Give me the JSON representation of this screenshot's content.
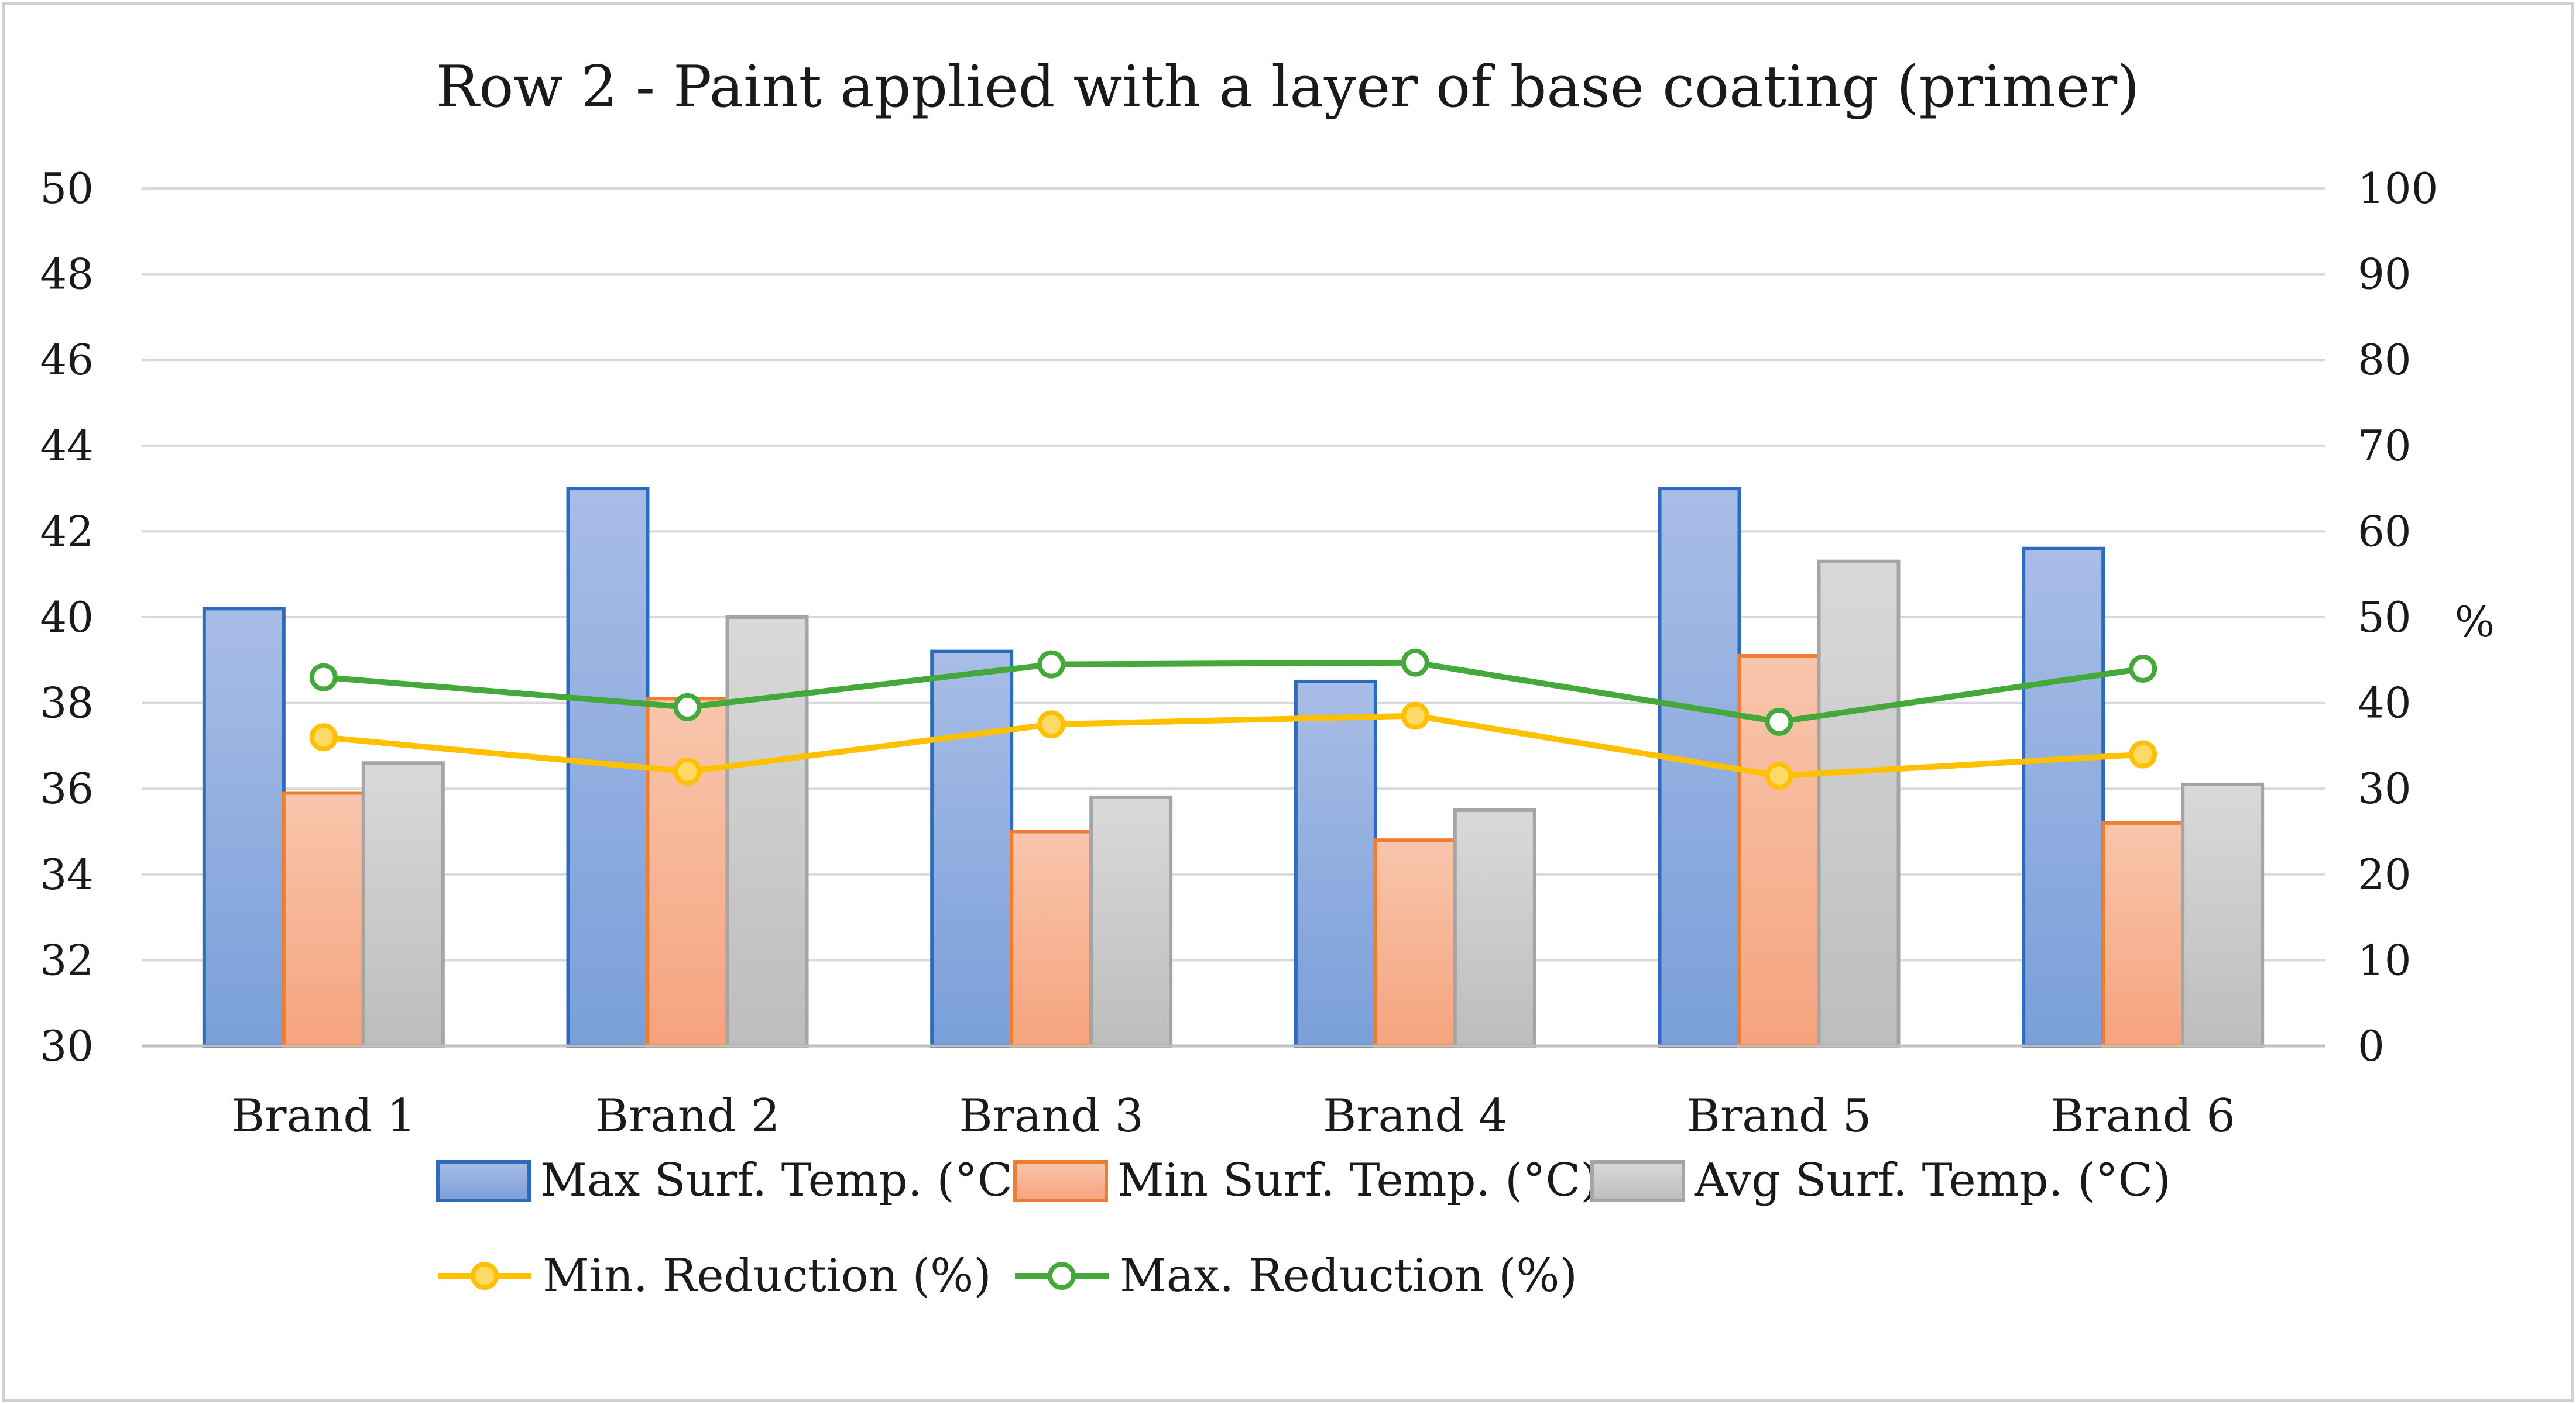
{
  "chart_data": {
    "type": "bar",
    "title": "Row 2 - Paint applied with a layer of base coating (primer)",
    "categories": [
      "Brand 1",
      "Brand 2",
      "Brand 3",
      "Brand 4",
      "Brand 5",
      "Brand 6"
    ],
    "y_left": {
      "min": 30,
      "max": 50,
      "step": 2,
      "label": ""
    },
    "y_right": {
      "min": 0,
      "max": 100,
      "step": 10,
      "label": "%"
    },
    "grid": true,
    "legend_position": "bottom",
    "bar_series": [
      {
        "name": "Max Surf. Temp. (°C)",
        "axis": "left",
        "values": [
          40.2,
          43.0,
          39.2,
          38.5,
          43.0,
          41.6
        ],
        "fill_top": "#a8bde6",
        "fill_bottom": "#7a9fd9",
        "stroke": "#2e6bbf"
      },
      {
        "name": "Min Surf. Temp. (°C)",
        "axis": "left",
        "values": [
          35.9,
          38.1,
          35.0,
          34.8,
          39.1,
          35.2
        ],
        "fill_top": "#f8c6ad",
        "fill_bottom": "#f5a37d",
        "stroke": "#ed7d31"
      },
      {
        "name": "Avg Surf. Temp. (°C)",
        "axis": "left",
        "values": [
          36.6,
          40.0,
          35.8,
          35.5,
          41.3,
          36.1
        ],
        "fill_top": "#d9d9d9",
        "fill_bottom": "#bdbdbd",
        "stroke": "#a5a5a5"
      }
    ],
    "line_series": [
      {
        "name": "Min. Reduction (%)",
        "axis": "right",
        "values": [
          36,
          32,
          37.5,
          38.5,
          31.5,
          34
        ],
        "stroke": "#ffc000",
        "marker_fill": "#ffd966"
      },
      {
        "name": "Max. Reduction (%)",
        "axis": "right",
        "values": [
          43,
          39.5,
          44.5,
          44.7,
          37.8,
          44
        ],
        "stroke": "#44a83a",
        "marker_fill": "#ffffff"
      }
    ]
  }
}
